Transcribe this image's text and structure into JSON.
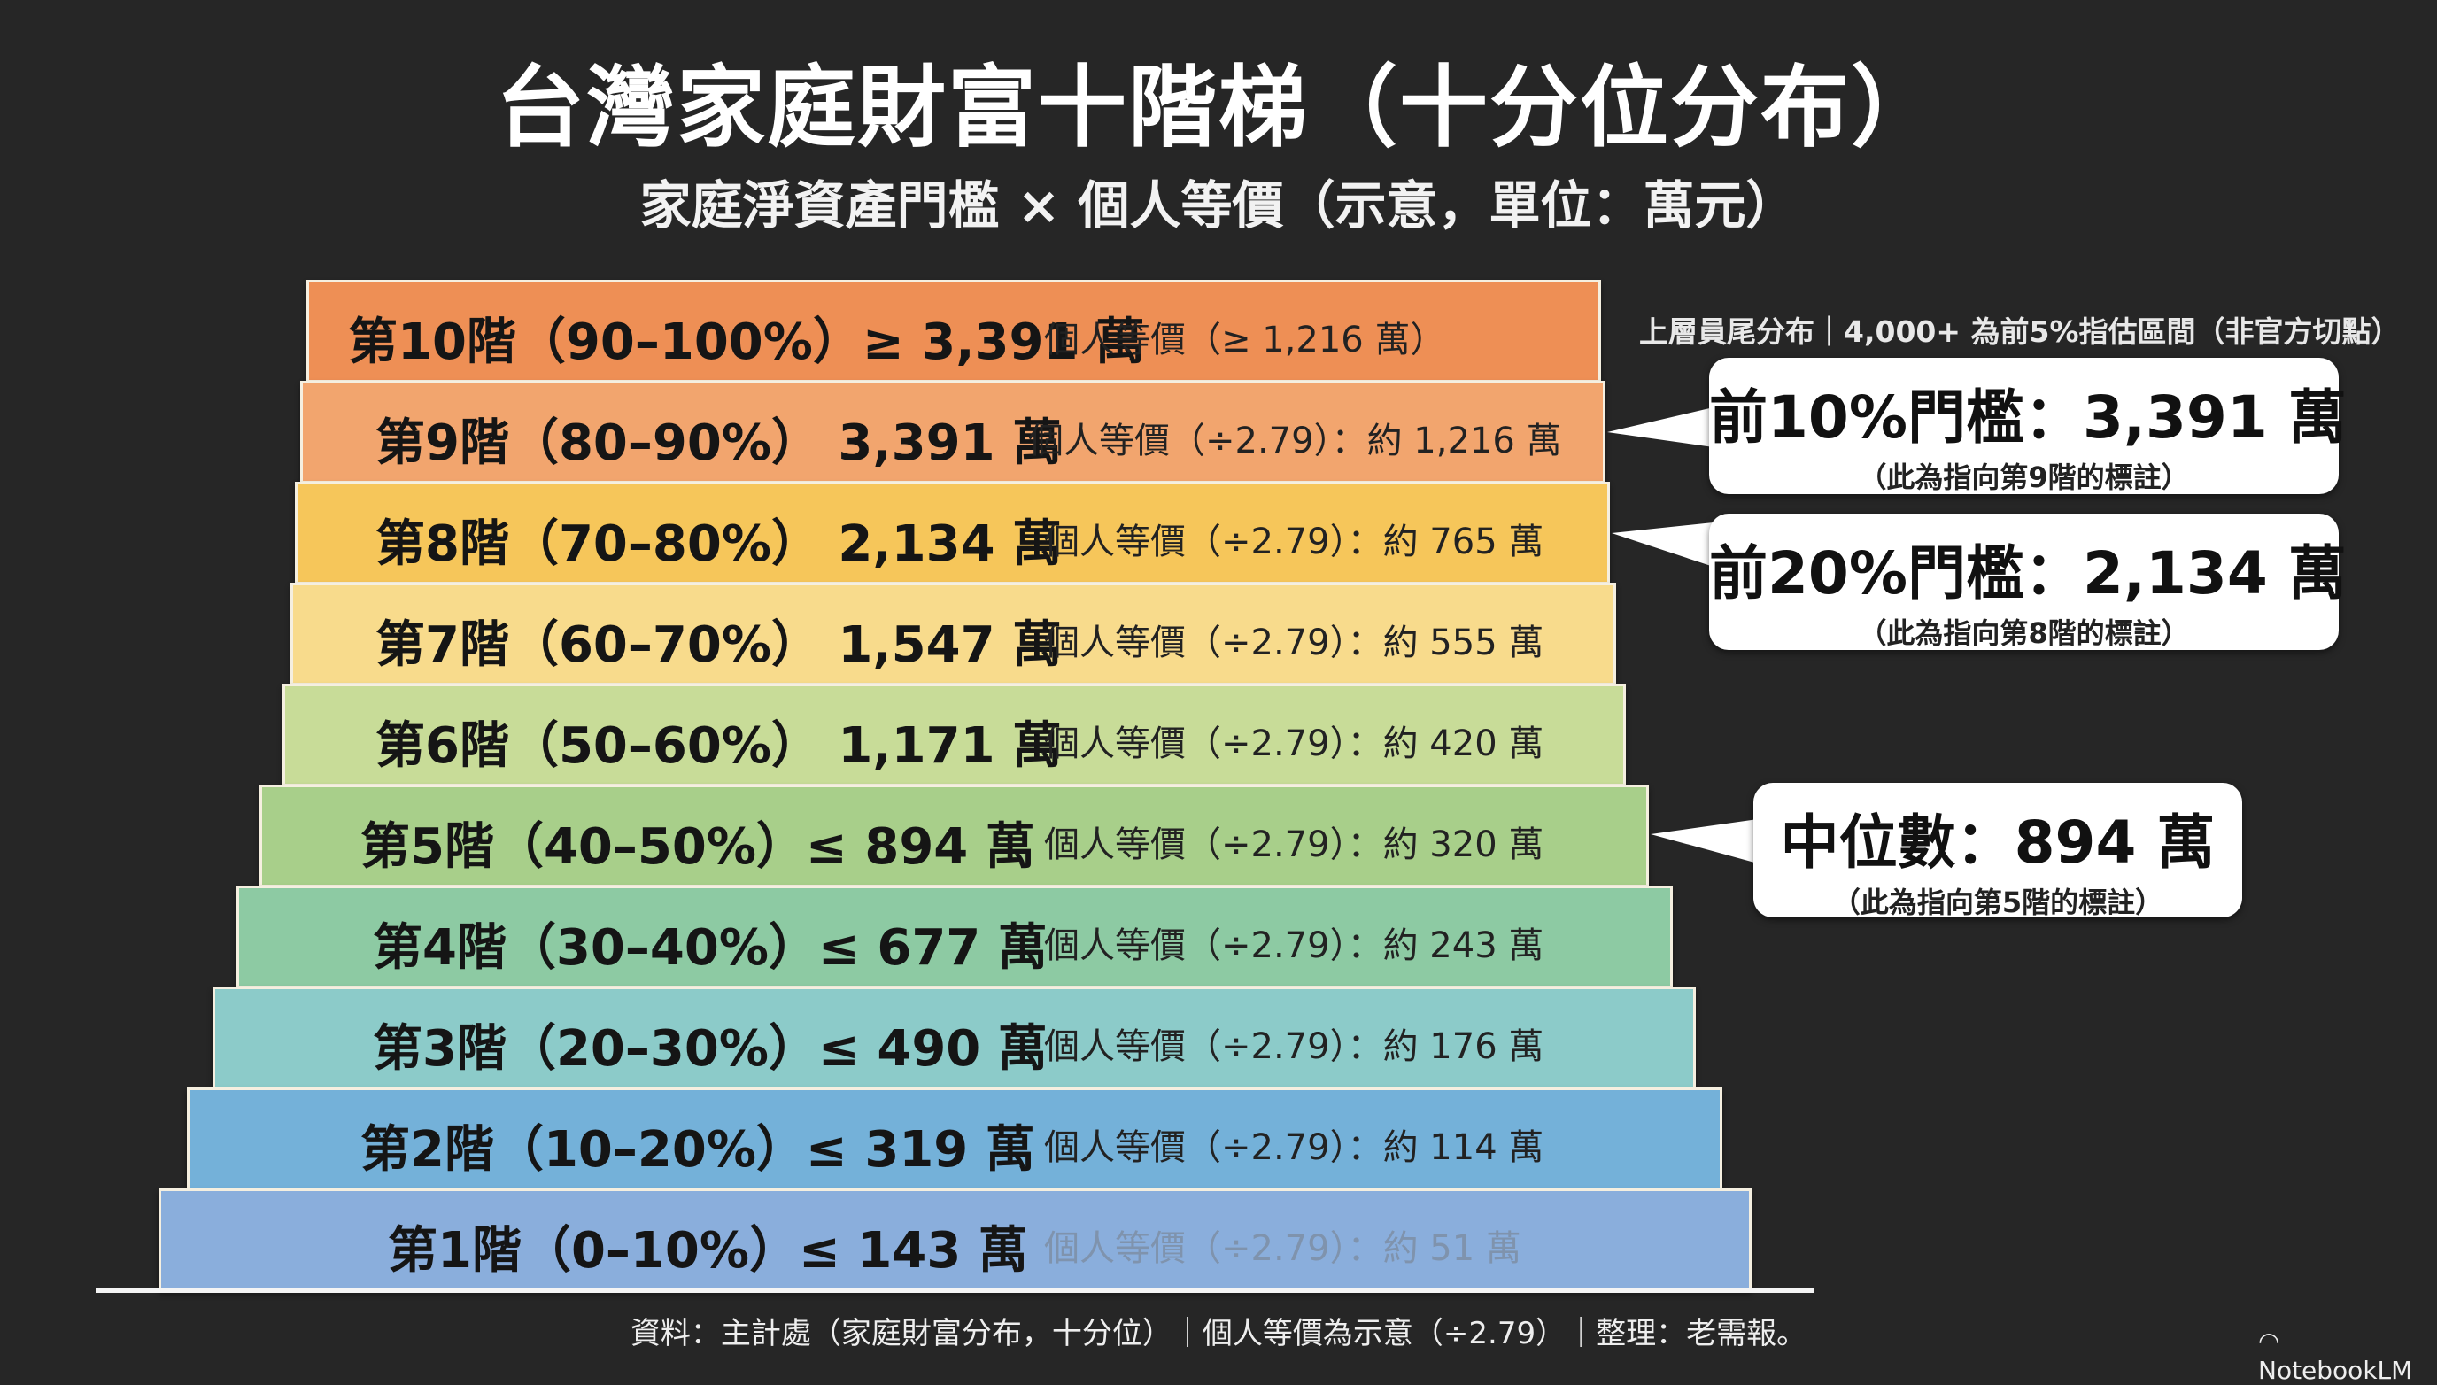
{
  "title": "台灣家庭財富十階梯（十分位分布）",
  "subtitle": "家庭淨資產門檻 × 個人等價（示意，單位：萬元）",
  "chart_data": {
    "type": "table",
    "title": "台灣家庭財富十階梯（十分位分布）",
    "subtitle": "家庭淨資產門檻 × 個人等價（示意，單位：萬元）",
    "unit": "萬元",
    "divisor": 2.79,
    "rows": [
      {
        "main": "第10階（90–100%）≥ 3,391 萬",
        "secondary": "個人等價（≥ 1,216 萬）",
        "decile": "90–100%",
        "household": 3391,
        "individual": 1216,
        "color": "#ee8f55"
      },
      {
        "main": "第9階（80–90%） 3,391 萬",
        "secondary": "個人等價（÷2.79）：約 1,216 萬",
        "decile": "80–90%",
        "household": 3391,
        "individual": 1216,
        "color": "#f2a56e"
      },
      {
        "main": "第8階（70–80%） 2,134 萬",
        "secondary": "個人等價（÷2.79）：約 765 萬",
        "decile": "70–80%",
        "household": 2134,
        "individual": 765,
        "color": "#f6c65a"
      },
      {
        "main": "第7階（60–70%） 1,547 萬",
        "secondary": "個人等價（÷2.79）：約 555 萬",
        "decile": "60–70%",
        "household": 1547,
        "individual": 555,
        "color": "#f8db8c"
      },
      {
        "main": "第6階（50–60%） 1,171 萬",
        "secondary": "個人等價（÷2.79）：約 420 萬",
        "decile": "50–60%",
        "household": 1171,
        "individual": 420,
        "color": "#c8dc98"
      },
      {
        "main": "第5階（40–50%）≤ 894 萬",
        "secondary": "個人等價（÷2.79）：約 320 萬",
        "decile": "40–50%",
        "household": 894,
        "individual": 320,
        "color": "#a8cf8a"
      },
      {
        "main": "第4階（30–40%）≤ 677 萬",
        "secondary": "個人等價（÷2.79）：約 243 萬",
        "decile": "30–40%",
        "household": 677,
        "individual": 243,
        "color": "#8dcaa3"
      },
      {
        "main": "第3階（20–30%）≤ 490 萬",
        "secondary": "個人等價（÷2.79）：約 176 萬",
        "decile": "20–30%",
        "household": 490,
        "individual": 176,
        "color": "#8ccbc9"
      },
      {
        "main": "第2階（10–20%）≤ 319 萬",
        "secondary": "個人等價（÷2.79）：約 114 萬",
        "decile": "10–20%",
        "household": 319,
        "individual": 114,
        "color": "#74b1d9"
      },
      {
        "main": "第1階（0–10%）≤ 143 萬",
        "secondary": "個人等價（÷2.79）：約 51 萬",
        "decile": "0–10%",
        "household": 143,
        "individual": 51,
        "color": "#8aaedc"
      }
    ]
  },
  "note": "上層員尾分布｜4,000+ 為前5%指估區間（非官方切點）",
  "callouts": [
    {
      "big": "前10%門檻：3,391 萬",
      "small": "（此為指向第9階的標註）"
    },
    {
      "big": "前20%門檻：2,134 萬",
      "small": "（此為指向第8階的標註）"
    },
    {
      "big": "中位數：894 萬",
      "small": "（此為指向第5階的標註）"
    }
  ],
  "footer": "資料：主計處（家庭財富分布，十分位）｜個人等價為示意（÷2.79）｜整理：老需報。",
  "brand": "NotebookLM",
  "brand_icon": "notebooklm-logo-icon"
}
